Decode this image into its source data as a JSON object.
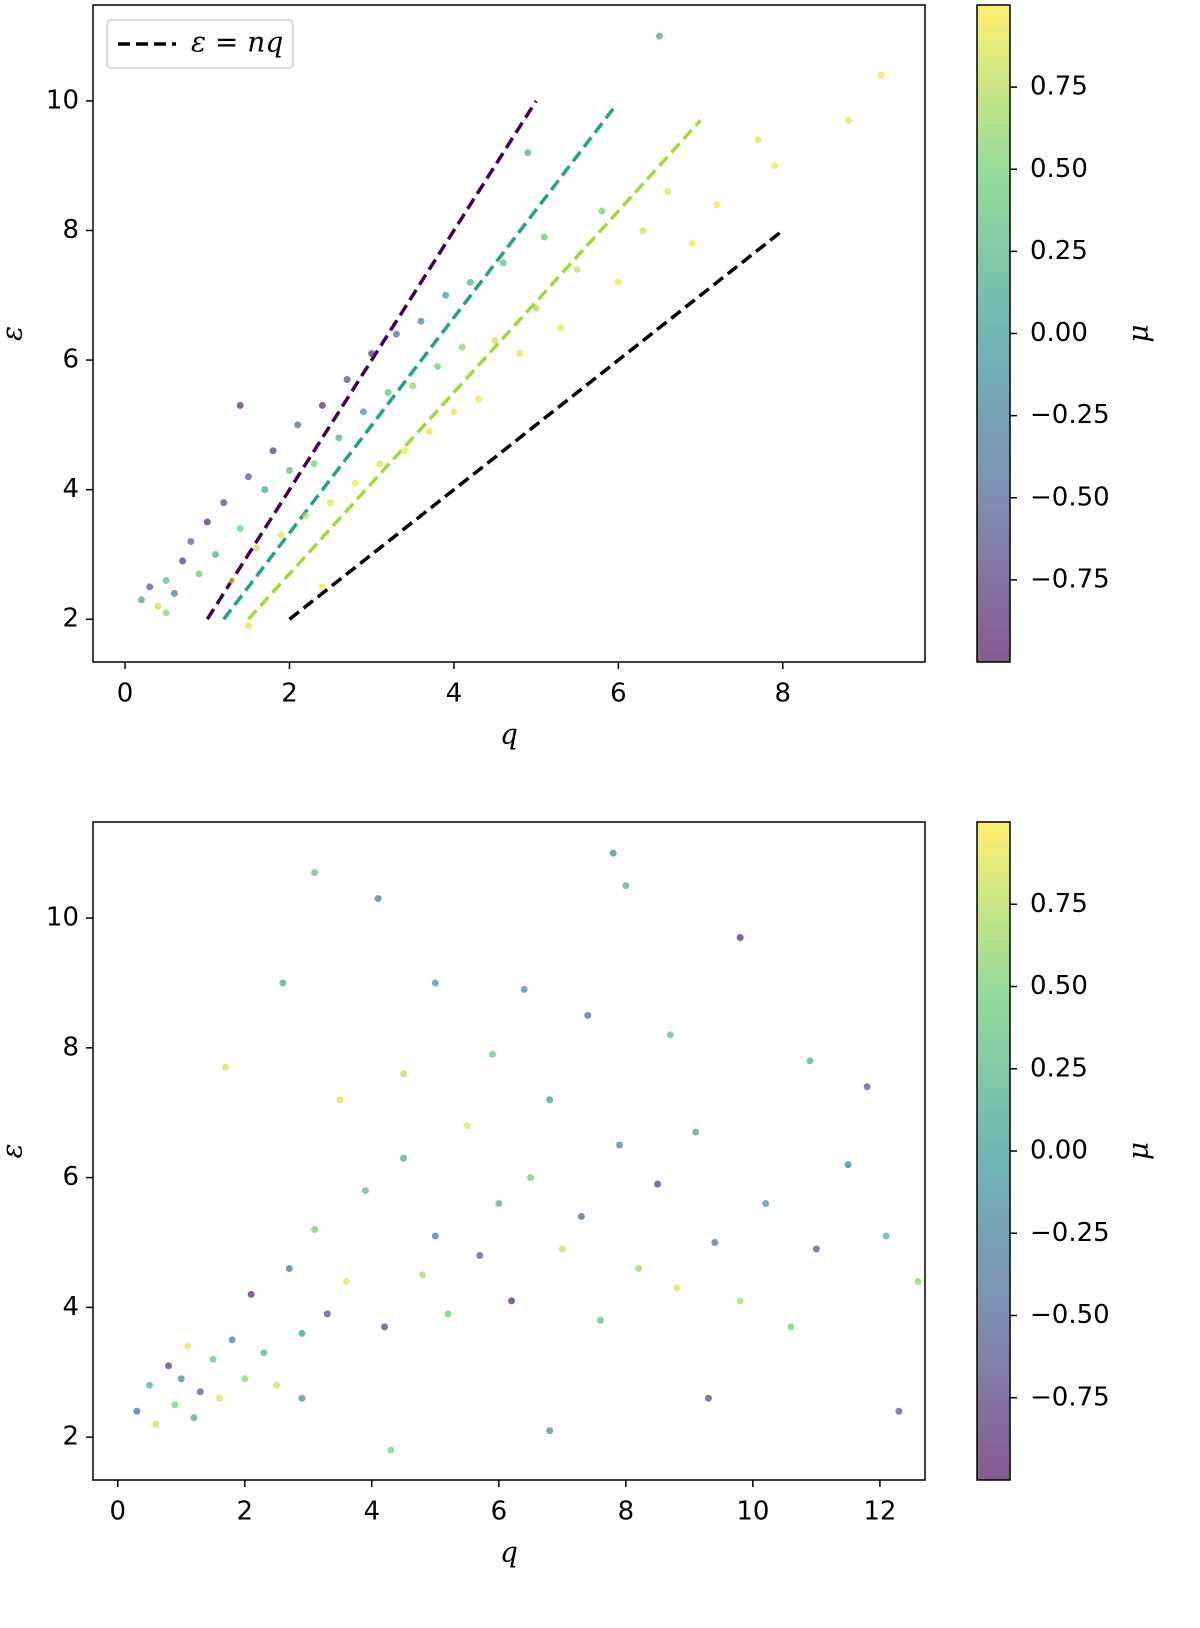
{
  "chart_data": [
    {
      "type": "scatter",
      "xlabel": "q",
      "ylabel": "ε",
      "colorbar_label": "μ",
      "xlim": [
        -0.39,
        9.73
      ],
      "ylim": [
        1.34,
        11.48
      ],
      "xticks": [
        0,
        2,
        4,
        6,
        8
      ],
      "yticks": [
        2,
        4,
        6,
        8,
        10
      ],
      "colormap": [
        "#440154",
        "#3b528b",
        "#21918c",
        "#5ec962",
        "#fde725"
      ],
      "clim": [
        -1,
        1
      ],
      "cticks": [
        {
          "value": -0.75,
          "label": "−0.75"
        },
        {
          "value": -0.5,
          "label": "−0.50"
        },
        {
          "value": -0.25,
          "label": "−0.25"
        },
        {
          "value": 0,
          "label": "0.00"
        },
        0.25,
        {
          "value": 0.5,
          "label": "0.50"
        },
        0.75
      ],
      "legend": "upper left",
      "lines": [
        {
          "x": [
            1,
            5
          ],
          "y": [
            2,
            10
          ],
          "color": "#440154"
        },
        {
          "x": [
            1.2,
            5.95
          ],
          "y": [
            2,
            9.9
          ],
          "color": "#20a386"
        },
        {
          "x": [
            1.5,
            7
          ],
          "y": [
            2,
            9.7
          ],
          "color": "#a0da39"
        },
        {
          "name": "ε = nq",
          "x": [
            2,
            8
          ],
          "y": [
            2,
            8
          ],
          "color": "#000000"
        }
      ],
      "points": {
        "x": [
          0.2,
          0.3,
          0.4,
          0.5,
          0.6,
          0.7,
          0.5,
          0.8,
          0.9,
          1.0,
          1.1,
          1.2,
          1.3,
          1.4,
          1.5,
          1.6,
          1.7,
          1.8,
          1.9,
          2.0,
          2.1,
          2.2,
          2.3,
          2.4,
          2.5,
          2.6,
          2.7,
          2.8,
          2.9,
          3.0,
          3.1,
          3.2,
          3.3,
          3.4,
          3.5,
          3.6,
          3.7,
          3.8,
          3.9,
          4.0,
          4.1,
          4.2,
          4.3,
          4.5,
          4.6,
          4.8,
          5.0,
          5.1,
          5.3,
          5.5,
          5.8,
          6.0,
          6.3,
          6.6,
          6.9,
          7.2,
          7.7,
          7.9,
          8.8,
          9.2,
          6.5,
          4.9,
          1.5,
          1.4,
          2.4
        ],
        "y": [
          2.3,
          2.5,
          2.2,
          2.6,
          2.4,
          2.9,
          2.1,
          3.2,
          2.7,
          3.5,
          3.0,
          3.8,
          2.6,
          3.4,
          4.2,
          3.1,
          4.0,
          4.6,
          3.3,
          4.3,
          5.0,
          3.6,
          4.4,
          5.3,
          3.8,
          4.8,
          5.7,
          4.1,
          5.2,
          6.1,
          4.4,
          5.5,
          6.4,
          4.6,
          5.6,
          6.6,
          4.9,
          5.9,
          7.0,
          5.2,
          6.2,
          7.2,
          5.4,
          6.3,
          7.5,
          6.1,
          6.8,
          7.9,
          6.5,
          7.4,
          8.3,
          7.2,
          8.0,
          8.6,
          7.8,
          8.4,
          9.4,
          9.0,
          9.7,
          10.4,
          11.0,
          9.2,
          1.9,
          5.3,
          2.5
        ],
        "c": [
          0.1,
          -0.6,
          0.8,
          0.3,
          -0.3,
          -0.8,
          0.6,
          -0.5,
          0.4,
          -0.9,
          0.2,
          -0.7,
          0.9,
          0.5,
          -0.6,
          0.8,
          0.1,
          -0.8,
          0.9,
          0.3,
          -0.5,
          0.85,
          0.5,
          -0.9,
          0.9,
          0.2,
          -0.7,
          0.95,
          0.0,
          -0.8,
          0.9,
          0.3,
          -0.4,
          0.9,
          0.6,
          -0.2,
          0.95,
          0.5,
          0.0,
          0.9,
          0.6,
          0.2,
          0.95,
          0.8,
          0.3,
          0.9,
          0.7,
          0.4,
          0.95,
          0.8,
          0.5,
          0.95,
          0.85,
          0.9,
          0.95,
          0.95,
          0.9,
          0.95,
          0.9,
          0.95,
          0.1,
          0.2,
          0.9,
          -0.9,
          0.95
        ]
      }
    },
    {
      "type": "scatter",
      "xlabel": "q",
      "ylabel": "ε",
      "colorbar_label": "μ",
      "xlim": [
        -0.39,
        12.71
      ],
      "ylim": [
        1.34,
        11.48
      ],
      "xticks": [
        0,
        2,
        4,
        6,
        8,
        10,
        12
      ],
      "yticks": [
        2,
        4,
        6,
        8,
        10
      ],
      "colormap": [
        "#440154",
        "#3b528b",
        "#21918c",
        "#5ec962",
        "#fde725"
      ],
      "clim": [
        -1,
        1
      ],
      "cticks": [
        {
          "value": -0.75,
          "label": "−0.75"
        },
        {
          "value": -0.5,
          "label": "−0.50"
        },
        {
          "value": -0.25,
          "label": "−0.25"
        },
        {
          "value": 0,
          "label": "0.00"
        },
        0.25,
        {
          "value": 0.5,
          "label": "0.50"
        },
        0.75
      ],
      "points": {
        "x": [
          0.3,
          0.5,
          0.6,
          0.8,
          0.9,
          1.0,
          1.1,
          1.2,
          1.3,
          1.5,
          1.6,
          1.8,
          2.0,
          2.1,
          2.3,
          2.5,
          2.7,
          2.9,
          3.1,
          3.3,
          3.6,
          3.9,
          4.2,
          4.5,
          4.8,
          5.0,
          5.2,
          5.5,
          5.7,
          6.0,
          6.2,
          6.5,
          6.8,
          7.0,
          7.3,
          7.6,
          7.9,
          8.2,
          8.5,
          8.8,
          9.1,
          9.4,
          9.8,
          10.2,
          10.6,
          11.0,
          11.5,
          12.1,
          12.6,
          3.1,
          4.1,
          7.8,
          8.0,
          9.8,
          2.6,
          5.0,
          6.4,
          4.5,
          3.5,
          5.9,
          7.4,
          8.7,
          10.9,
          11.8,
          1.7,
          2.9,
          4.3,
          6.8,
          9.3,
          12.3
        ],
        "y": [
          2.4,
          2.8,
          2.2,
          3.1,
          2.5,
          2.9,
          3.4,
          2.3,
          2.7,
          3.2,
          2.6,
          3.5,
          2.9,
          4.2,
          3.3,
          2.8,
          4.6,
          3.6,
          5.2,
          3.9,
          4.4,
          5.8,
          3.7,
          6.3,
          4.5,
          5.1,
          3.9,
          6.8,
          4.8,
          5.6,
          4.1,
          6.0,
          7.2,
          4.9,
          5.4,
          3.8,
          6.5,
          4.6,
          5.9,
          4.3,
          6.7,
          5.0,
          4.1,
          5.6,
          3.7,
          4.9,
          6.2,
          5.1,
          4.4,
          10.7,
          10.3,
          11.0,
          10.5,
          9.7,
          9.0,
          9.0,
          8.9,
          7.6,
          7.2,
          7.9,
          8.5,
          8.2,
          7.8,
          7.4,
          7.7,
          2.6,
          1.8,
          2.1,
          2.6,
          2.4
        ],
        "c": [
          -0.5,
          0.2,
          0.8,
          -0.8,
          0.5,
          -0.2,
          0.9,
          0.1,
          -0.6,
          0.4,
          0.9,
          -0.3,
          0.6,
          -0.9,
          0.2,
          0.8,
          -0.4,
          0.0,
          0.5,
          -0.7,
          0.9,
          0.3,
          -0.8,
          0.1,
          0.7,
          -0.3,
          0.4,
          0.9,
          -0.6,
          0.2,
          -0.9,
          0.5,
          0.0,
          0.8,
          -0.5,
          0.3,
          -0.2,
          0.6,
          -0.8,
          0.9,
          0.1,
          -0.4,
          0.7,
          -0.1,
          0.5,
          -0.6,
          -0.3,
          0.2,
          0.6,
          0.3,
          -0.4,
          -0.2,
          0.2,
          -0.9,
          0.1,
          0.0,
          -0.1,
          0.8,
          0.9,
          0.4,
          -0.5,
          0.3,
          0.2,
          -0.6,
          0.85,
          -0.2,
          0.5,
          -0.1,
          -0.7,
          -0.6
        ]
      }
    }
  ]
}
